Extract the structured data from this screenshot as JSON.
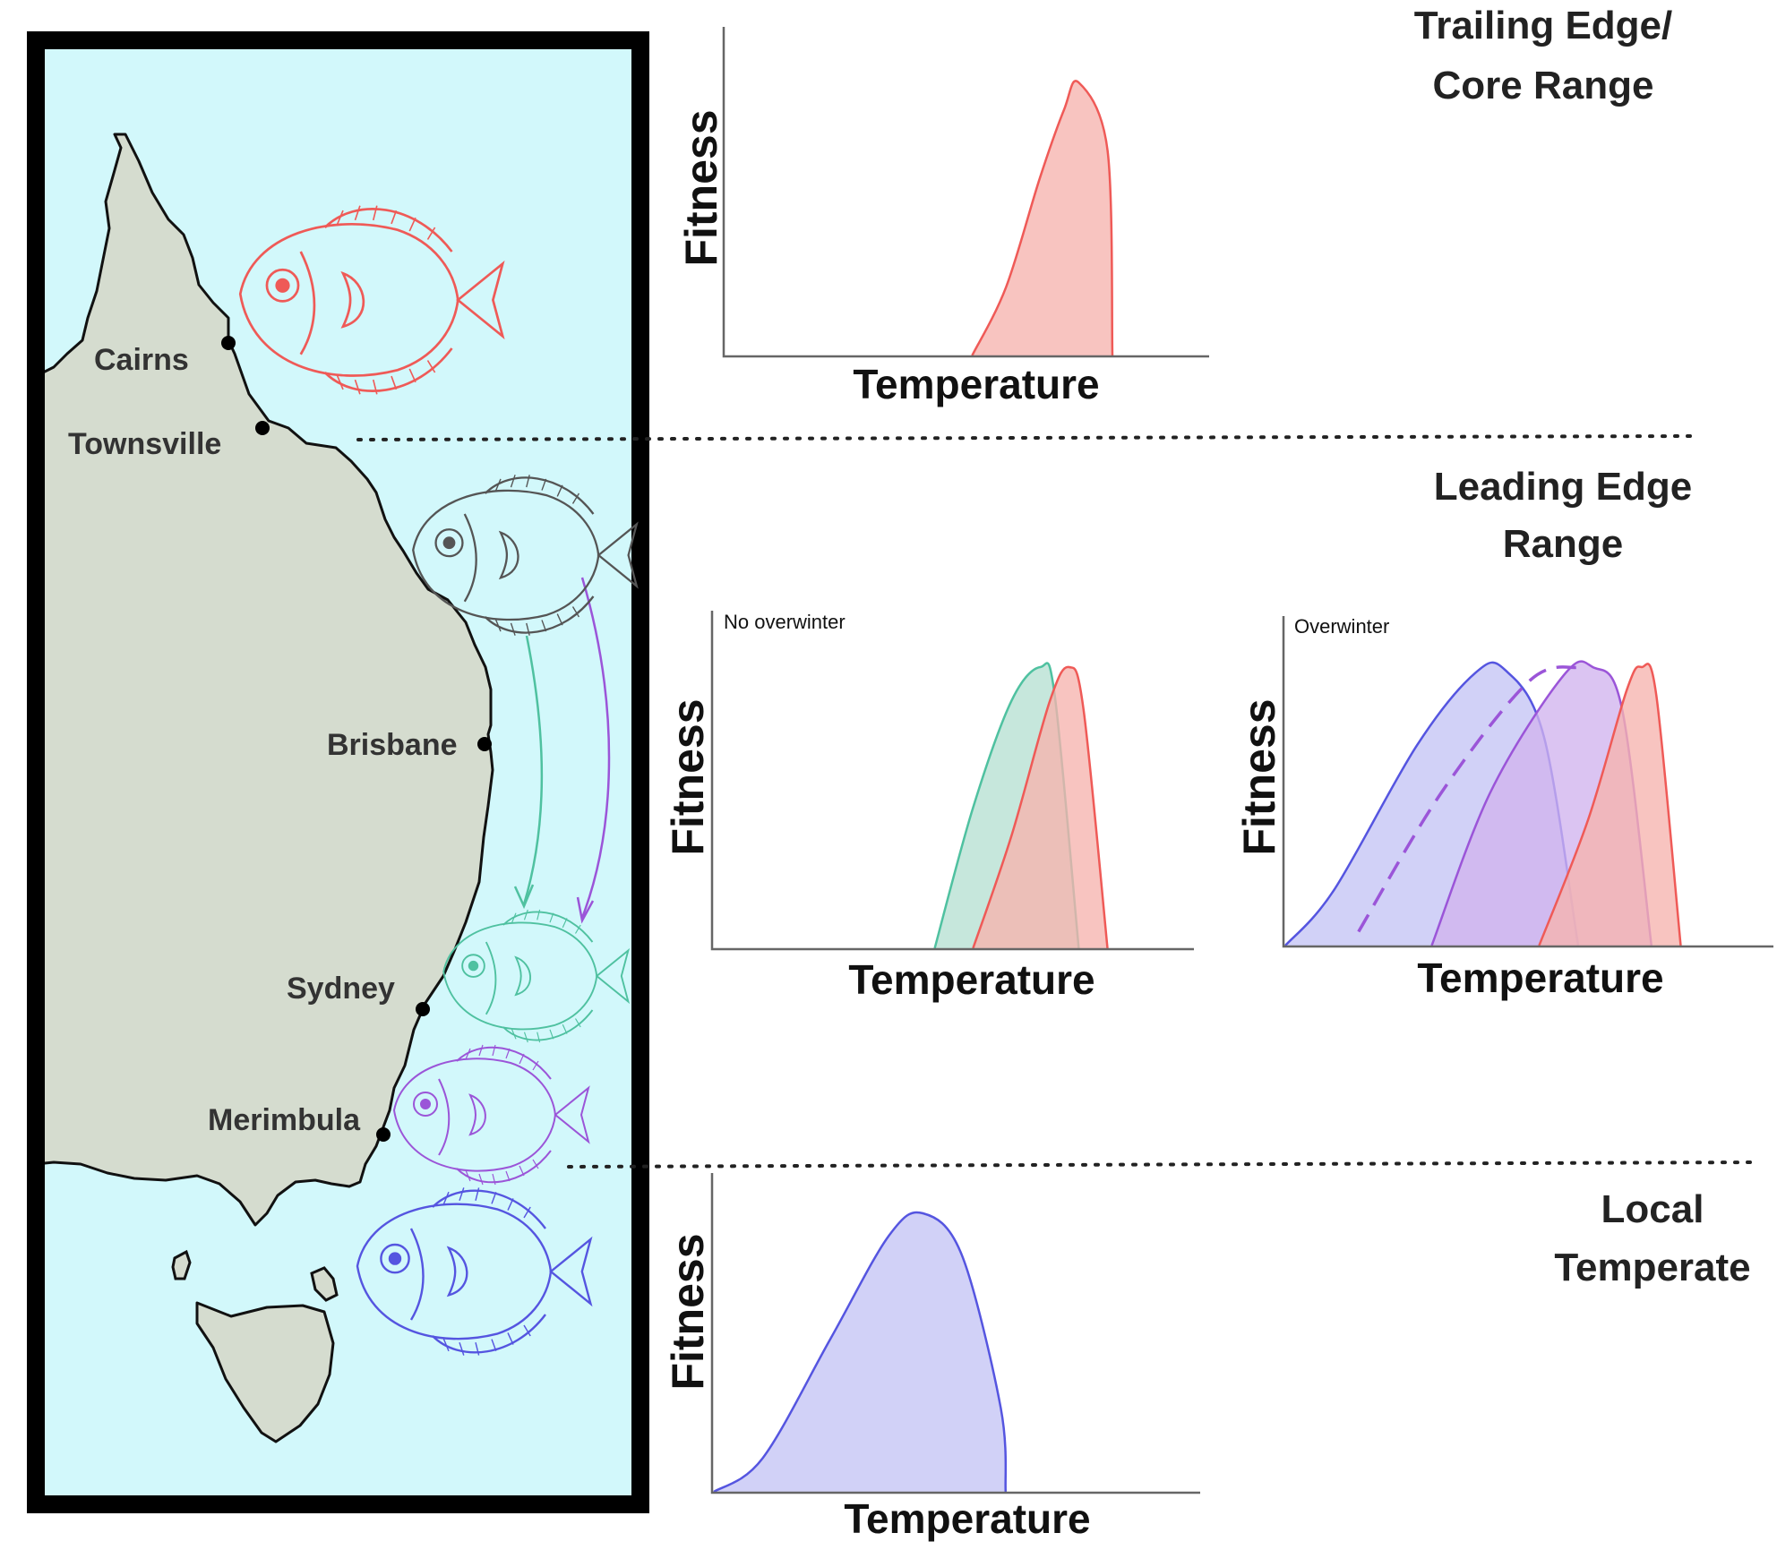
{
  "sections": {
    "trailing": {
      "title_line1": "Trailing Edge/",
      "title_line2": "Core Range"
    },
    "leading": {
      "title_line1": "Leading Edge",
      "title_line2": "Range"
    },
    "local": {
      "title_line1": "Local",
      "title_line2": "Temperate"
    }
  },
  "map": {
    "cities": [
      "Cairns",
      "Townsville",
      "Brisbane",
      "Sydney",
      "Merimbula"
    ]
  },
  "colors": {
    "ocean": "#d2f8fb",
    "land": "#d5dccf",
    "red": "#ef5a57",
    "red_fill": "#f6b3ae",
    "green": "#4fc1a0",
    "green_fill": "#b6e0d2",
    "blue": "#5555e0",
    "blue_fill": "#c4c4f5",
    "purple": "#9b55d8",
    "purple_fill": "#d1b3ee",
    "gray_fish": "#555555"
  },
  "fish_icons": [
    "red-fish-icon",
    "gray-fish-icon",
    "green-fish-icon",
    "purple-fish-icon",
    "blue-fish-icon"
  ],
  "chart_data": [
    {
      "type": "area",
      "panel": "trailing-edge-core-range",
      "xlabel": "Temperature",
      "ylabel": "Fitness",
      "ylim": [
        0,
        1
      ],
      "series": [
        {
          "color": "red",
          "x": [
            0.51,
            0.58,
            0.65,
            0.7,
            0.73,
            0.79,
            0.8
          ],
          "y": [
            0,
            0.25,
            0.65,
            0.9,
            1.0,
            0.75,
            0
          ]
        }
      ]
    },
    {
      "type": "area",
      "panel": "leading-edge-no-overwinter",
      "annotation": "No overwinter",
      "xlabel": "Temperature",
      "ylabel": "Fitness",
      "ylim": [
        0,
        1
      ],
      "series": [
        {
          "color": "green",
          "x": [
            0.46,
            0.54,
            0.62,
            0.68,
            0.71,
            0.76
          ],
          "y": [
            0,
            0.5,
            0.88,
            1.0,
            0.9,
            0
          ]
        },
        {
          "color": "red",
          "x": [
            0.54,
            0.62,
            0.7,
            0.74,
            0.77,
            0.82
          ],
          "y": [
            0,
            0.4,
            0.88,
            1.0,
            0.85,
            0
          ]
        }
      ]
    },
    {
      "type": "area",
      "panel": "leading-edge-overwinter",
      "annotation": "Overwinter",
      "xlabel": "Temperature",
      "ylabel": "Fitness",
      "ylim": [
        0,
        1
      ],
      "series": [
        {
          "color": "blue",
          "x": [
            0.0,
            0.1,
            0.27,
            0.39,
            0.45,
            0.53,
            0.6
          ],
          "y": [
            0,
            0.2,
            0.72,
            0.98,
            0.99,
            0.75,
            0
          ]
        },
        {
          "color": "purple",
          "x": [
            0.3,
            0.42,
            0.57,
            0.63,
            0.69,
            0.75
          ],
          "y": [
            0,
            0.55,
            0.97,
            1.0,
            0.85,
            0
          ]
        },
        {
          "color": "purple",
          "style": "dashed",
          "x": [
            0.15,
            0.32,
            0.5,
            0.6
          ],
          "y": [
            0.05,
            0.55,
            0.95,
            1.0
          ]
        },
        {
          "color": "red",
          "x": [
            0.52,
            0.62,
            0.7,
            0.73,
            0.76,
            0.81
          ],
          "y": [
            0,
            0.45,
            0.92,
            1.0,
            0.9,
            0
          ]
        }
      ]
    },
    {
      "type": "area",
      "panel": "local-temperate",
      "xlabel": "Temperature",
      "ylabel": "Fitness",
      "ylim": [
        0,
        1
      ],
      "series": [
        {
          "color": "blue",
          "x": [
            0.0,
            0.1,
            0.24,
            0.36,
            0.43,
            0.51,
            0.59,
            0.6
          ],
          "y": [
            0,
            0.12,
            0.55,
            0.92,
            1.0,
            0.85,
            0.3,
            0
          ]
        }
      ]
    }
  ]
}
